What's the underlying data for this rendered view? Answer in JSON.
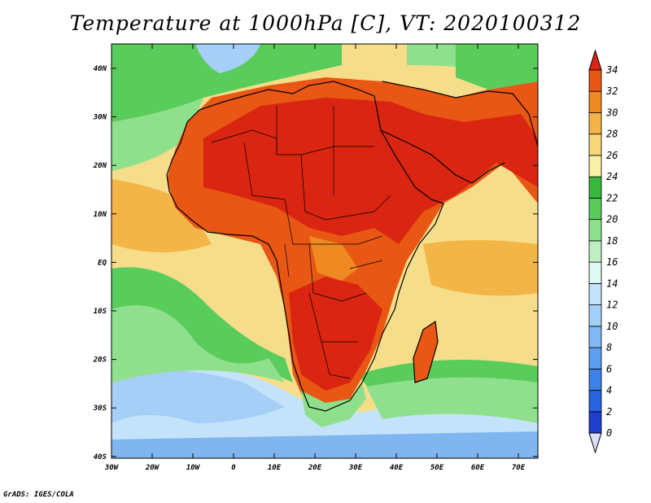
{
  "title": "Temperature at 1000hPa [C], VT: 2020100312",
  "credit": "GrADS: IGES/COLA",
  "map": {
    "lon_ticks": [
      "30W",
      "20W",
      "10W",
      "0",
      "10E",
      "20E",
      "30E",
      "40E",
      "50E",
      "60E",
      "70E"
    ],
    "lat_ticks": [
      "40N",
      "30N",
      "20N",
      "10N",
      "EQ",
      "10S",
      "20S",
      "30S",
      "40S"
    ]
  },
  "colorbar": {
    "labels": [
      "0",
      "2",
      "4",
      "6",
      "8",
      "10",
      "12",
      "14",
      "16",
      "18",
      "20",
      "22",
      "24",
      "26",
      "28",
      "30",
      "32",
      "34"
    ],
    "colors": [
      "#1e1e9e",
      "#1d3fcc",
      "#2a63e0",
      "#3c82ea",
      "#5c9ef0",
      "#82b8f3",
      "#a6cff7",
      "#c4e3fa",
      "#e2f8f4",
      "#bfeec3",
      "#8fe08c",
      "#5acc5c",
      "#38b83c",
      "#f7f0a6",
      "#f7d777",
      "#f4b547",
      "#ef8a22",
      "#e85713",
      "#d92511"
    ],
    "under_color": "#dcdcfb"
  }
}
